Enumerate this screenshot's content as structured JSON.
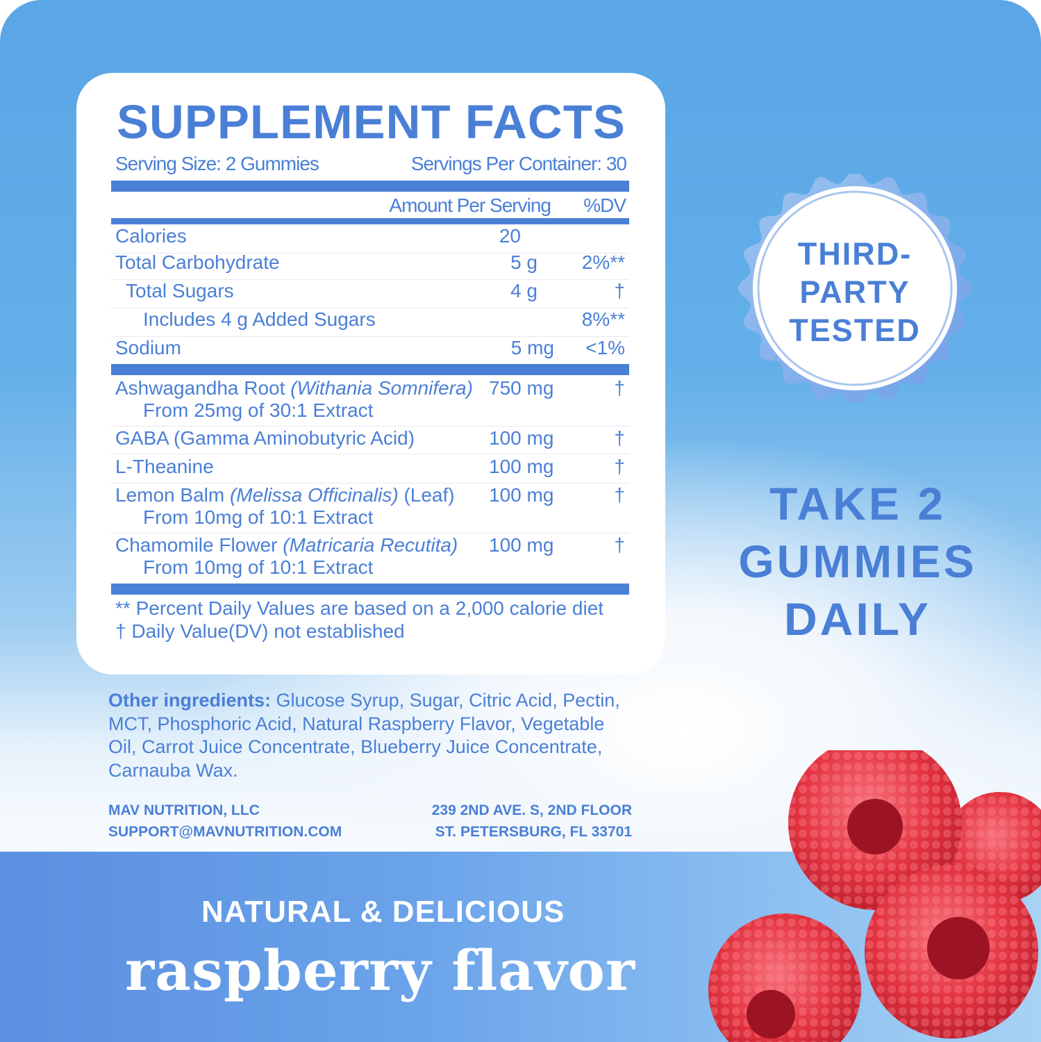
{
  "facts": {
    "title": "SUPPLEMENT FACTS",
    "serving_size": "Serving Size: 2 Gummies",
    "servings_per_container": "Servings Per Container: 30",
    "col_amount": "Amount Per Serving",
    "col_dv": "%DV",
    "nutrients": [
      {
        "name": "Calories",
        "amount": "20",
        "dv": ""
      },
      {
        "name": "Total Carbohydrate",
        "amount": "5 g",
        "dv": "2%**"
      },
      {
        "name": "Total Sugars",
        "amount": "4 g",
        "dv": "†"
      },
      {
        "name": "Includes 4 g Added Sugars",
        "amount": "",
        "dv": "8%**"
      },
      {
        "name": "Sodium",
        "amount": "5 mg",
        "dv": "<1%"
      }
    ],
    "ingredients": [
      {
        "name": "Ashwagandha Root",
        "latin": "(Withania Somnifera)",
        "suffix": "",
        "detail": "From 25mg of 30:1 Extract",
        "amount": "750 mg",
        "dv": "†"
      },
      {
        "name": "GABA (Gamma Aminobutyric Acid)",
        "latin": "",
        "suffix": "",
        "detail": "",
        "amount": "100 mg",
        "dv": "†"
      },
      {
        "name": "L-Theanine",
        "latin": "",
        "suffix": "",
        "detail": "",
        "amount": "100 mg",
        "dv": "†"
      },
      {
        "name": "Lemon Balm",
        "latin": "(Melissa Officinalis)",
        "suffix": "(Leaf)",
        "detail": "From 10mg of 10:1 Extract",
        "amount": "100 mg",
        "dv": "†"
      },
      {
        "name": "Chamomile Flower",
        "latin": "(Matricaria Recutita)",
        "suffix": "",
        "detail": "From 10mg of 10:1 Extract",
        "amount": "100 mg",
        "dv": "†"
      }
    ],
    "footnote1": "** Percent Daily Values are based on a 2,000 calorie diet",
    "footnote2": "† Daily Value(DV) not established"
  },
  "other": {
    "label": "Other ingredients:",
    "text": " Glucose Syrup, Sugar, Citric Acid, Pectin, MCT, Phosphoric Acid, Natural Raspberry Flavor, Vegetable Oil, Carrot Juice Concentrate, Blueberry Juice Concentrate, Carnauba Wax."
  },
  "company": {
    "name": "MAV NUTRITION, LLC",
    "email": "SUPPORT@MAVNUTRITION.COM",
    "address1": "239 2ND AVE. S, 2ND FLOOR",
    "address2": "ST. PETERSBURG, FL 33701"
  },
  "badge": {
    "line1": "THIRD-",
    "line2": "PARTY",
    "line3": "TESTED"
  },
  "directions": {
    "line1": "TAKE 2",
    "line2": "GUMMIES",
    "line3": "DAILY"
  },
  "flavor": {
    "tagline": "NATURAL & DELICIOUS",
    "name": "raspberry flavor"
  },
  "colors": {
    "accent": "#4a7fd6",
    "sky": "#5aa6e6",
    "berry": "#e2323f"
  }
}
